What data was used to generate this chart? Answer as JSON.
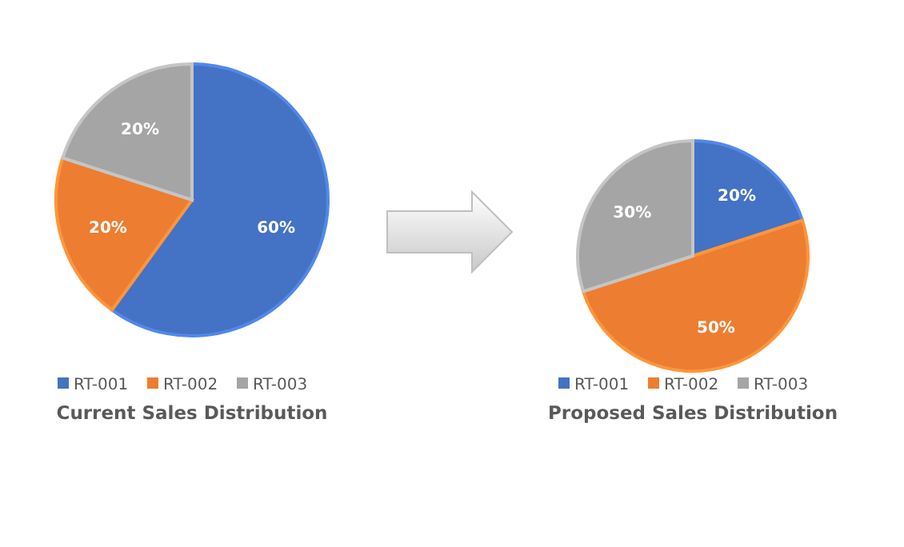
{
  "chart_data": [
    {
      "type": "pie",
      "title": "Current Sales Distribution",
      "categories": [
        "RT-001",
        "RT-002",
        "RT-003"
      ],
      "values": [
        60,
        20,
        20
      ],
      "value_labels": [
        "60%",
        "20%",
        "20%"
      ],
      "colors": [
        "#4472c4",
        "#ed7d31",
        "#a5a5a5"
      ],
      "legend": "bottom"
    },
    {
      "type": "pie",
      "title": "Proposed Sales Distribution",
      "categories": [
        "RT-001",
        "RT-002",
        "RT-003"
      ],
      "values": [
        20,
        50,
        30
      ],
      "value_labels": [
        "20%",
        "50%",
        "30%"
      ],
      "colors": [
        "#4472c4",
        "#ed7d31",
        "#a5a5a5"
      ],
      "legend": "bottom"
    }
  ]
}
